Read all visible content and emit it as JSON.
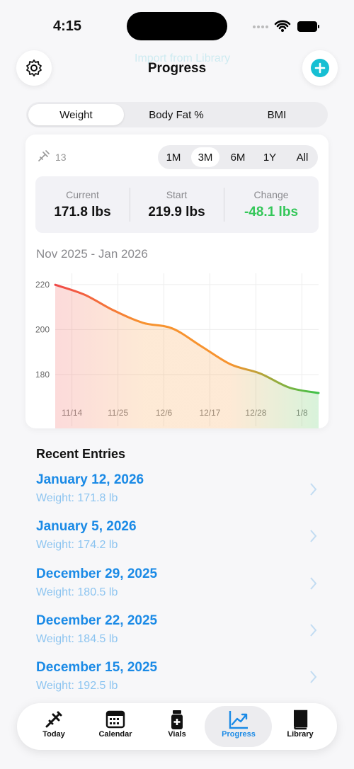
{
  "status": {
    "time": "4:15"
  },
  "header": {
    "background_link": "Import from Library",
    "title": "Progress"
  },
  "tabs": [
    "Weight",
    "Body Fat %",
    "BMI"
  ],
  "entry_count": "13",
  "ranges": [
    "1M",
    "3M",
    "6M",
    "1Y",
    "All"
  ],
  "stats": [
    {
      "label": "Current",
      "value": "171.8 lbs"
    },
    {
      "label": "Start",
      "value": "219.9 lbs"
    },
    {
      "label": "Change",
      "value": "-48.1 lbs"
    }
  ],
  "chart_data": {
    "type": "line",
    "subtitle": "Nov 2025 - Jan 2026",
    "x": [
      0,
      7,
      14,
      21,
      28,
      35,
      42,
      49,
      56,
      63
    ],
    "values": [
      219.9,
      215.5,
      208.5,
      203,
      200.5,
      192.5,
      184.5,
      180.5,
      174.2,
      171.8
    ],
    "colors": [
      "#f04848",
      "#f7932f",
      "#f7932f",
      "#3cc24a"
    ],
    "xlim": [
      0,
      63
    ],
    "xticks": [
      {
        "value": 4,
        "label": "11/14"
      },
      {
        "value": 15,
        "label": "11/25"
      },
      {
        "value": 26,
        "label": "12/6"
      },
      {
        "value": 37,
        "label": "12/17"
      },
      {
        "value": 48,
        "label": "12/28"
      },
      {
        "value": 59,
        "label": "1/8"
      }
    ],
    "ylim": [
      157,
      225
    ],
    "yticks": [
      180,
      200,
      220
    ],
    "grid": true
  },
  "recent": {
    "title": "Recent Entries",
    "entries": [
      {
        "date": "January 12, 2026",
        "detail": "Weight: 171.8 lb"
      },
      {
        "date": "January 5, 2026",
        "detail": "Weight: 174.2 lb"
      },
      {
        "date": "December 29, 2025",
        "detail": "Weight: 180.5 lb"
      },
      {
        "date": "December 22, 2025",
        "detail": "Weight: 184.5 lb"
      },
      {
        "date": "December 15, 2025",
        "detail": "Weight: 192.5 lb"
      }
    ]
  },
  "nav": [
    "Today",
    "Calendar",
    "Vials",
    "Progress",
    "Library"
  ]
}
